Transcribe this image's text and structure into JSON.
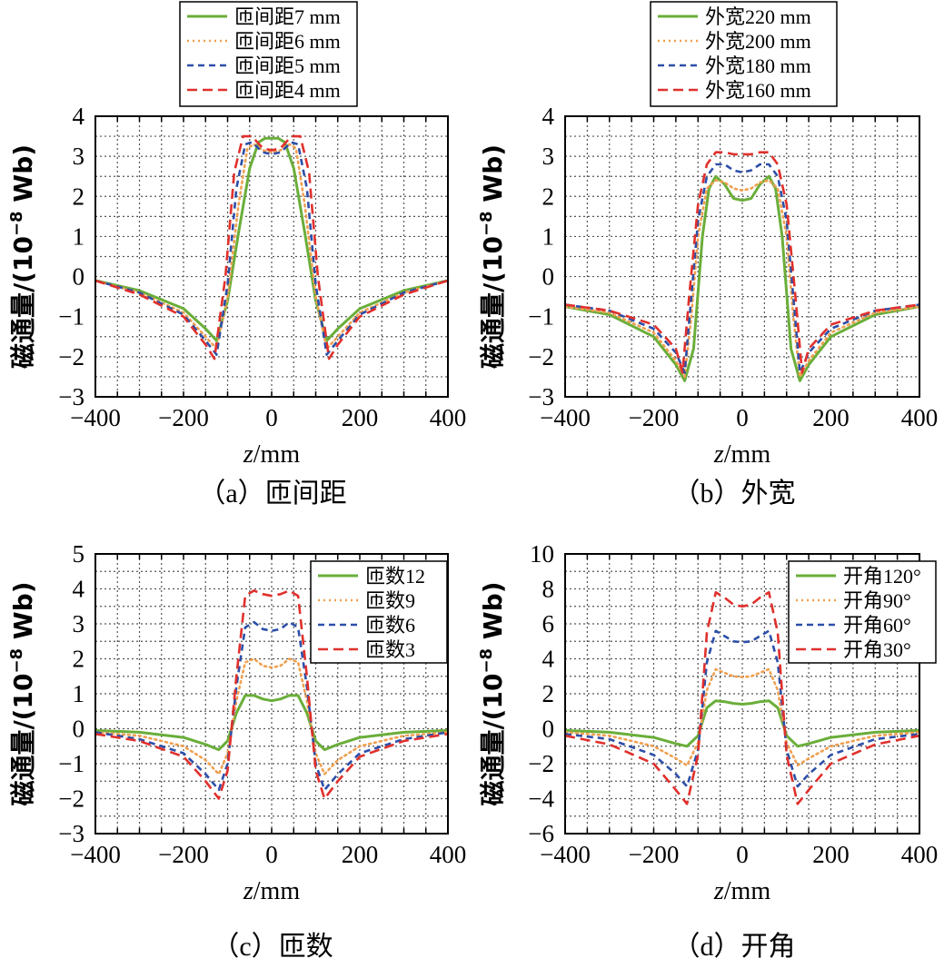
{
  "chart_data": [
    {
      "type": "line",
      "caption": "（a）匝间距",
      "xlabel_italic": "z",
      "xlabel_unit": "/mm",
      "ylabel": "磁通量/(10",
      "ylabel_exp": "−8",
      "ylabel_unit": " Wb)",
      "xlim": [
        -400,
        400
      ],
      "ylim": [
        -3,
        4
      ],
      "xticks": [
        "−400",
        "−200",
        "0",
        "200",
        "400"
      ],
      "yticks": [
        "−3",
        "−2",
        "−1",
        "0",
        "1",
        "2",
        "3",
        "4"
      ],
      "grid": true,
      "legend_position": "above-plot",
      "series": [
        {
          "name": "匝间距7 mm",
          "color": "#6aae3a",
          "dash": "solid",
          "x": [
            -400,
            -300,
            -200,
            -150,
            -125,
            -100,
            -75,
            -50,
            -30,
            -15,
            0,
            15,
            30,
            50,
            75,
            100,
            125,
            150,
            200,
            300,
            400
          ],
          "y": [
            -0.1,
            -0.35,
            -0.8,
            -1.3,
            -1.6,
            -0.6,
            1.1,
            2.7,
            3.35,
            3.45,
            3.45,
            3.45,
            3.35,
            2.7,
            1.1,
            -0.6,
            -1.6,
            -1.3,
            -0.8,
            -0.35,
            -0.1
          ]
        },
        {
          "name": "匝间距6 mm",
          "color": "#f0a050",
          "dash": "2,4",
          "x": [
            -400,
            -300,
            -200,
            -150,
            -125,
            -100,
            -75,
            -55,
            -40,
            -20,
            0,
            20,
            40,
            55,
            75,
            100,
            125,
            150,
            200,
            300,
            400
          ],
          "y": [
            -0.1,
            -0.4,
            -0.9,
            -1.5,
            -1.8,
            -0.5,
            1.8,
            3.2,
            3.3,
            3.15,
            3.1,
            3.15,
            3.3,
            3.2,
            1.8,
            -0.5,
            -1.8,
            -1.5,
            -0.9,
            -0.4,
            -0.1
          ]
        },
        {
          "name": "匝间距5 mm",
          "color": "#2d4fa8",
          "dash": "7,5",
          "x": [
            -400,
            -300,
            -200,
            -150,
            -125,
            -100,
            -80,
            -60,
            -45,
            -20,
            0,
            20,
            45,
            60,
            80,
            100,
            125,
            150,
            200,
            300,
            400
          ],
          "y": [
            -0.1,
            -0.4,
            -0.95,
            -1.6,
            -1.95,
            -0.2,
            2.2,
            3.3,
            3.35,
            3.1,
            3.05,
            3.1,
            3.35,
            3.3,
            2.2,
            -0.2,
            -1.95,
            -1.6,
            -0.95,
            -0.4,
            -0.1
          ]
        },
        {
          "name": "匝间距4 mm",
          "color": "#e0302c",
          "dash": "11,6",
          "x": [
            -400,
            -300,
            -200,
            -150,
            -130,
            -105,
            -85,
            -65,
            -45,
            -20,
            0,
            20,
            45,
            65,
            85,
            105,
            130,
            150,
            200,
            300,
            400
          ],
          "y": [
            -0.1,
            -0.45,
            -1.0,
            -1.7,
            -2.05,
            0.0,
            2.6,
            3.5,
            3.5,
            3.2,
            3.15,
            3.2,
            3.5,
            3.5,
            2.6,
            0.0,
            -2.05,
            -1.7,
            -1.0,
            -0.45,
            -0.1
          ]
        }
      ]
    },
    {
      "type": "line",
      "caption": "（b）外宽",
      "xlabel_italic": "z",
      "xlabel_unit": "/mm",
      "ylabel": "磁通量/(10",
      "ylabel_exp": "−8",
      "ylabel_unit": " Wb)",
      "xlim": [
        -400,
        400
      ],
      "ylim": [
        -3,
        4
      ],
      "xticks": [
        "−400",
        "−200",
        "0",
        "200",
        "400"
      ],
      "yticks": [
        "−3",
        "−2",
        "−1",
        "0",
        "1",
        "2",
        "3",
        "4"
      ],
      "grid": true,
      "legend_position": "above-plot",
      "series": [
        {
          "name": "外宽220 mm",
          "color": "#6aae3a",
          "dash": "solid",
          "x": [
            -400,
            -300,
            -200,
            -150,
            -130,
            -110,
            -90,
            -75,
            -60,
            -40,
            -20,
            0,
            20,
            40,
            60,
            75,
            90,
            110,
            130,
            150,
            200,
            300,
            400
          ],
          "y": [
            -0.75,
            -0.95,
            -1.5,
            -2.2,
            -2.6,
            -1.8,
            1.0,
            2.2,
            2.5,
            2.3,
            1.95,
            1.9,
            1.95,
            2.3,
            2.5,
            2.2,
            1.0,
            -1.8,
            -2.6,
            -2.2,
            -1.5,
            -0.95,
            -0.75
          ]
        },
        {
          "name": "外宽200 mm",
          "color": "#f0a050",
          "dash": "2,4",
          "x": [
            -400,
            -300,
            -200,
            -150,
            -130,
            -115,
            -100,
            -80,
            -60,
            -40,
            -20,
            0,
            20,
            40,
            60,
            80,
            100,
            115,
            130,
            150,
            200,
            300,
            400
          ],
          "y": [
            -0.75,
            -0.9,
            -1.4,
            -2.1,
            -2.5,
            -1.0,
            1.0,
            2.2,
            2.4,
            2.35,
            2.2,
            2.15,
            2.2,
            2.35,
            2.4,
            2.2,
            1.0,
            -1.0,
            -2.5,
            -2.1,
            -1.4,
            -0.9,
            -0.75
          ]
        },
        {
          "name": "外宽180 mm",
          "color": "#2d4fa8",
          "dash": "7,5",
          "x": [
            -400,
            -300,
            -200,
            -150,
            -130,
            -115,
            -100,
            -80,
            -60,
            -40,
            -20,
            0,
            20,
            40,
            60,
            80,
            100,
            115,
            130,
            150,
            200,
            300,
            400
          ],
          "y": [
            -0.7,
            -0.85,
            -1.3,
            -1.9,
            -2.4,
            -0.5,
            1.4,
            2.5,
            2.8,
            2.8,
            2.65,
            2.6,
            2.65,
            2.8,
            2.8,
            2.5,
            1.4,
            -0.5,
            -2.4,
            -1.9,
            -1.3,
            -0.85,
            -0.7
          ]
        },
        {
          "name": "外宽160 mm",
          "color": "#e0302c",
          "dash": "11,6",
          "x": [
            -400,
            -300,
            -200,
            -150,
            -135,
            -120,
            -100,
            -80,
            -60,
            -40,
            -20,
            0,
            20,
            40,
            60,
            80,
            100,
            120,
            135,
            150,
            200,
            300,
            400
          ],
          "y": [
            -0.7,
            -0.85,
            -1.2,
            -1.8,
            -2.4,
            -0.5,
            1.8,
            2.8,
            3.1,
            3.1,
            3.05,
            3.05,
            3.05,
            3.1,
            3.1,
            2.8,
            1.8,
            -0.5,
            -2.4,
            -1.8,
            -1.2,
            -0.85,
            -0.7
          ]
        }
      ]
    },
    {
      "type": "line",
      "caption": "（c）匝数",
      "xlabel_italic": "z",
      "xlabel_unit": "/mm",
      "ylabel": "磁通量/(10",
      "ylabel_exp": "−8",
      "ylabel_unit": " Wb)",
      "xlim": [
        -400,
        400
      ],
      "ylim": [
        -3,
        5
      ],
      "xticks": [
        "−400",
        "−200",
        "0",
        "200",
        "400"
      ],
      "yticks": [
        "−3",
        "−2",
        "−1",
        "0",
        "1",
        "2",
        "3",
        "4",
        "5"
      ],
      "grid": true,
      "legend_position": "top-right",
      "series": [
        {
          "name": "匝数12",
          "color": "#6aae3a",
          "dash": "solid",
          "x": [
            -400,
            -300,
            -200,
            -150,
            -120,
            -100,
            -80,
            -60,
            -40,
            -20,
            0,
            20,
            40,
            60,
            80,
            100,
            120,
            150,
            200,
            300,
            400
          ],
          "y": [
            -0.05,
            -0.1,
            -0.25,
            -0.45,
            -0.6,
            -0.35,
            0.45,
            0.95,
            0.95,
            0.85,
            0.8,
            0.85,
            0.95,
            0.95,
            0.45,
            -0.35,
            -0.6,
            -0.45,
            -0.25,
            -0.1,
            -0.05
          ]
        },
        {
          "name": "匝数9",
          "color": "#f0a050",
          "dash": "2,4",
          "x": [
            -400,
            -300,
            -200,
            -150,
            -120,
            -100,
            -80,
            -60,
            -40,
            -20,
            0,
            20,
            40,
            60,
            80,
            100,
            120,
            150,
            200,
            300,
            400
          ],
          "y": [
            -0.1,
            -0.2,
            -0.5,
            -0.9,
            -1.3,
            -0.7,
            0.8,
            1.9,
            2.0,
            1.8,
            1.75,
            1.8,
            2.0,
            1.9,
            0.8,
            -0.7,
            -1.3,
            -0.9,
            -0.5,
            -0.2,
            -0.1
          ]
        },
        {
          "name": "匝数6",
          "color": "#2d4fa8",
          "dash": "7,5",
          "x": [
            -400,
            -300,
            -200,
            -150,
            -120,
            -100,
            -80,
            -60,
            -40,
            -20,
            0,
            20,
            40,
            60,
            80,
            100,
            120,
            150,
            200,
            300,
            400
          ],
          "y": [
            -0.1,
            -0.3,
            -0.7,
            -1.3,
            -1.75,
            -1.0,
            1.2,
            2.9,
            3.05,
            2.85,
            2.8,
            2.85,
            3.05,
            2.9,
            1.2,
            -1.0,
            -1.75,
            -1.3,
            -0.7,
            -0.3,
            -0.1
          ]
        },
        {
          "name": "匝数3",
          "color": "#e0302c",
          "dash": "11,6",
          "x": [
            -400,
            -300,
            -200,
            -150,
            -120,
            -100,
            -80,
            -60,
            -40,
            -20,
            0,
            20,
            40,
            60,
            80,
            100,
            120,
            150,
            200,
            300,
            400
          ],
          "y": [
            -0.15,
            -0.35,
            -0.8,
            -1.5,
            -2.0,
            -1.2,
            1.5,
            3.8,
            3.95,
            3.85,
            3.8,
            3.85,
            3.95,
            3.8,
            1.5,
            -1.2,
            -2.0,
            -1.5,
            -0.8,
            -0.35,
            -0.15
          ]
        }
      ]
    },
    {
      "type": "line",
      "caption": "（d）开角",
      "xlabel_italic": "z",
      "xlabel_unit": "/mm",
      "ylabel": "磁通量/(10",
      "ylabel_exp": "−8",
      "ylabel_unit": " Wb)",
      "xlim": [
        -400,
        400
      ],
      "ylim": [
        -6,
        10
      ],
      "xticks": [
        "−400",
        "−200",
        "0",
        "200",
        "400"
      ],
      "yticks": [
        "−6",
        "−4",
        "−2",
        "0",
        "2",
        "4",
        "6",
        "8",
        "10"
      ],
      "grid": true,
      "legend_position": "top-right",
      "series": [
        {
          "name": "开角120°",
          "color": "#6aae3a",
          "dash": "solid",
          "x": [
            -400,
            -300,
            -200,
            -150,
            -125,
            -100,
            -80,
            -60,
            -40,
            -20,
            0,
            20,
            40,
            60,
            80,
            100,
            125,
            150,
            200,
            300,
            400
          ],
          "y": [
            -0.1,
            -0.2,
            -0.5,
            -0.85,
            -1.0,
            -0.4,
            1.2,
            1.6,
            1.55,
            1.45,
            1.4,
            1.45,
            1.55,
            1.6,
            1.2,
            -0.4,
            -1.0,
            -0.85,
            -0.5,
            -0.2,
            -0.1
          ]
        },
        {
          "name": "开角90°",
          "color": "#f0a050",
          "dash": "2,4",
          "x": [
            -400,
            -300,
            -200,
            -150,
            -125,
            -100,
            -80,
            -60,
            -40,
            -20,
            0,
            20,
            40,
            60,
            80,
            100,
            125,
            150,
            200,
            300,
            400
          ],
          "y": [
            -0.2,
            -0.4,
            -1.0,
            -1.7,
            -2.1,
            -0.8,
            2.2,
            3.4,
            3.2,
            3.0,
            2.95,
            3.0,
            3.2,
            3.4,
            2.2,
            -0.8,
            -2.1,
            -1.7,
            -1.0,
            -0.4,
            -0.2
          ]
        },
        {
          "name": "开角60°",
          "color": "#2d4fa8",
          "dash": "7,5",
          "x": [
            -400,
            -300,
            -200,
            -150,
            -125,
            -100,
            -80,
            -60,
            -40,
            -20,
            0,
            20,
            40,
            60,
            80,
            100,
            125,
            150,
            200,
            300,
            400
          ],
          "y": [
            -0.3,
            -0.6,
            -1.5,
            -2.6,
            -3.3,
            -1.2,
            3.8,
            5.6,
            5.3,
            5.0,
            4.95,
            5.0,
            5.3,
            5.6,
            3.8,
            -1.2,
            -3.3,
            -2.6,
            -1.5,
            -0.6,
            -0.3
          ]
        },
        {
          "name": "开角30°",
          "color": "#e0302c",
          "dash": "11,6",
          "x": [
            -400,
            -300,
            -200,
            -150,
            -125,
            -100,
            -80,
            -60,
            -40,
            -20,
            0,
            20,
            40,
            60,
            80,
            100,
            125,
            150,
            200,
            300,
            400
          ],
          "y": [
            -0.4,
            -0.9,
            -2.0,
            -3.5,
            -4.3,
            -1.5,
            5.5,
            7.8,
            7.5,
            7.1,
            7.0,
            7.1,
            7.5,
            7.8,
            5.5,
            -1.5,
            -4.3,
            -3.5,
            -2.0,
            -0.9,
            -0.4
          ]
        }
      ]
    }
  ]
}
